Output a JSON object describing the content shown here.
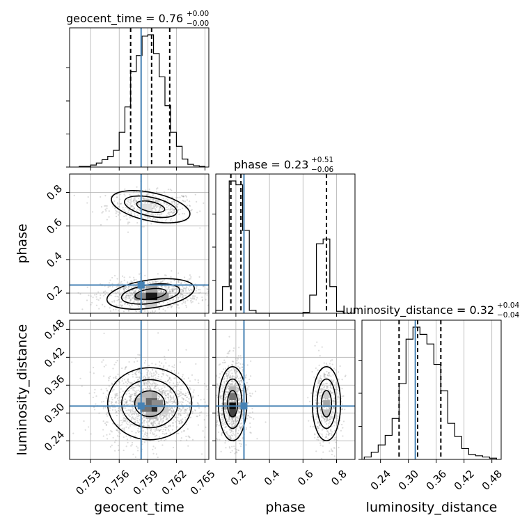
{
  "chart_data": {
    "type": "corner",
    "parameters": [
      "geocent_time",
      "phase",
      "luminosity_distance"
    ],
    "truths": {
      "geocent_time": 0.7583,
      "phase": 0.248,
      "luminosity_distance": 0.315
    },
    "titles": [
      {
        "param": "geocent_time",
        "text": "geocent_time = 0.76",
        "sup": "+0.00",
        "sub": "−0.00"
      },
      {
        "param": "phase",
        "text": "phase = 0.23",
        "sup": "+0.51",
        "sub": "−0.06"
      },
      {
        "param": "luminosity_distance",
        "text": "luminosity_distance = 0.32",
        "sup": "+0.04",
        "sub": "−0.04"
      }
    ],
    "axis_labels": {
      "x": [
        "geocent_time",
        "phase",
        "luminosity_distance"
      ],
      "y": [
        "phase",
        "luminosity_distance"
      ]
    },
    "ticks": {
      "geocent_time": [
        "0.753",
        "0.756",
        "0.759",
        "0.762",
        "0.765"
      ],
      "phase_x": [
        "0.2",
        "0.4",
        "0.6",
        "0.8"
      ],
      "phase_y": [
        "0.2",
        "0.4",
        "0.6",
        "0.8"
      ],
      "luminosity_distance_x": [
        "0.24",
        "0.30",
        "0.36",
        "0.42",
        "0.48"
      ],
      "luminosity_distance_y": [
        "0.24",
        "0.30",
        "0.36",
        "0.42",
        "0.48"
      ]
    },
    "ranges": {
      "geocent_time": [
        0.7508,
        0.7654
      ],
      "phase": [
        0.08,
        0.91
      ],
      "luminosity_distance": [
        0.2,
        0.5
      ]
    },
    "histograms": {
      "geocent_time": {
        "bin_edges": [
          0.7518,
          0.7524,
          0.753,
          0.7536,
          0.7542,
          0.7548,
          0.7554,
          0.756,
          0.7566,
          0.7572,
          0.7578,
          0.7584,
          0.759,
          0.7596,
          0.7602,
          0.7608,
          0.7614,
          0.762,
          0.7626,
          0.7632,
          0.7638,
          0.7644,
          0.765
        ],
        "counts": [
          1,
          1,
          3,
          6,
          11,
          16,
          25,
          52,
          90,
          143,
          167,
          196,
          198,
          170,
          135,
          92,
          52,
          31,
          12,
          4,
          2,
          1
        ],
        "quantiles": [
          0.7572,
          0.7594,
          0.7613
        ]
      },
      "phase": {
        "bin_edges": [
          0.08,
          0.12,
          0.16,
          0.2,
          0.24,
          0.28,
          0.32,
          0.36,
          0.4,
          0.44,
          0.48,
          0.52,
          0.56,
          0.6,
          0.64,
          0.68,
          0.72,
          0.76,
          0.8,
          0.84
        ],
        "counts": [
          3,
          28,
          139,
          135,
          87,
          3,
          0,
          0,
          0,
          0,
          0,
          0,
          0,
          1,
          19,
          73,
          78,
          28,
          2
        ],
        "quantiles": [
          0.17,
          0.23,
          0.74
        ]
      },
      "luminosity_distance": {
        "bin_edges": [
          0.205,
          0.22,
          0.235,
          0.25,
          0.265,
          0.28,
          0.295,
          0.31,
          0.325,
          0.34,
          0.355,
          0.37,
          0.385,
          0.4,
          0.415,
          0.43,
          0.445,
          0.46,
          0.475,
          0.49
        ],
        "counts": [
          2,
          6,
          12,
          20,
          34,
          63,
          100,
          110,
          104,
          96,
          79,
          57,
          30,
          19,
          9,
          4,
          3,
          2,
          1
        ],
        "quantiles": [
          0.28,
          0.32,
          0.37
        ]
      }
    },
    "joint_2d": {
      "phase_vs_geocent_time": {
        "modes": [
          {
            "center": [
              0.7593,
              0.715
            ],
            "sigma": [
              0.002,
              0.04
            ],
            "weight": 0.35,
            "tilt": -0.004
          },
          {
            "center": [
              0.7593,
              0.195
            ],
            "sigma": [
              0.0022,
              0.04
            ],
            "weight": 0.65,
            "tilt": 0.004
          }
        ],
        "density_cells": [
          {
            "center": [
              0.7594,
              0.18
            ],
            "level": 0.9
          },
          {
            "center": [
              0.7582,
              0.18
            ],
            "level": 0.45
          },
          {
            "center": [
              0.7606,
              0.18
            ],
            "level": 0.4
          },
          {
            "center": [
              0.7594,
              0.225
            ],
            "level": 0.35
          },
          {
            "center": [
              0.7594,
              0.135
            ],
            "level": 0.2
          },
          {
            "center": [
              0.7588,
              0.71
            ],
            "level": 0.12
          }
        ]
      },
      "luminosity_distance_vs_geocent_time": {
        "modes": [
          {
            "center": [
              0.7592,
              0.32
            ],
            "sigma": [
              0.0021,
              0.037
            ],
            "weight": 1.0,
            "tilt": 0.0
          }
        ],
        "density_cells": [
          {
            "center": [
              0.7594,
              0.31
            ],
            "level": 0.85
          },
          {
            "center": [
              0.7594,
              0.325
            ],
            "level": 0.6
          },
          {
            "center": [
              0.7588,
              0.31
            ],
            "level": 0.55
          },
          {
            "center": [
              0.76,
              0.32
            ],
            "level": 0.45
          },
          {
            "center": [
              0.7594,
              0.34
            ],
            "level": 0.35
          },
          {
            "center": [
              0.7588,
              0.34
            ],
            "level": 0.3
          },
          {
            "center": [
              0.7594,
              0.295
            ],
            "level": 0.3
          },
          {
            "center": [
              0.7582,
              0.325
            ],
            "level": 0.25
          },
          {
            "center": [
              0.7606,
              0.305
            ],
            "level": 0.2
          }
        ]
      },
      "luminosity_distance_vs_phase": {
        "modes": [
          {
            "center": [
              0.18,
              0.32
            ],
            "sigma": [
              0.04,
              0.038
            ],
            "weight": 0.65,
            "tilt": 0.0
          },
          {
            "center": [
              0.74,
              0.32
            ],
            "sigma": [
              0.04,
              0.038
            ],
            "weight": 0.35,
            "tilt": 0.0
          }
        ],
        "density_cells": [
          {
            "center": [
              0.18,
              0.315
            ],
            "level": 0.95
          },
          {
            "center": [
              0.18,
              0.3
            ],
            "level": 0.75
          },
          {
            "center": [
              0.18,
              0.335
            ],
            "level": 0.55
          },
          {
            "center": [
              0.14,
              0.315
            ],
            "level": 0.35
          },
          {
            "center": [
              0.22,
              0.315
            ],
            "level": 0.3
          },
          {
            "center": [
              0.18,
              0.35
            ],
            "level": 0.3
          },
          {
            "center": [
              0.74,
              0.32
            ],
            "level": 0.35
          },
          {
            "center": [
              0.74,
              0.3
            ],
            "level": 0.25
          },
          {
            "center": [
              0.74,
              0.34
            ],
            "level": 0.2
          }
        ]
      }
    },
    "colors": {
      "truth": "#4682b4",
      "hist": "#000000",
      "contour": "#000000",
      "scatter": "#9a9a9a",
      "grid": "#b0b0b0"
    },
    "grid": true
  }
}
